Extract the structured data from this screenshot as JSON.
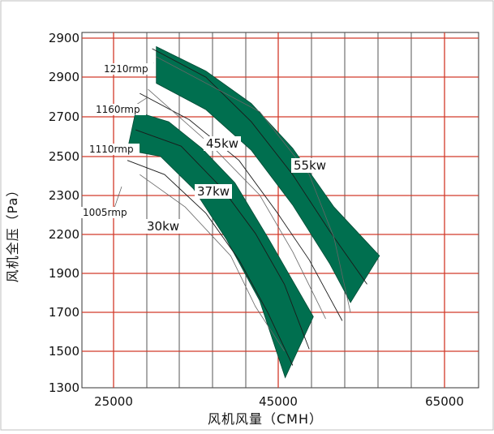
{
  "chart_data": {
    "type": "line",
    "xlabel": "风机风量（CMH）",
    "ylabel": "风机全压（Pa）",
    "x_ticks": [
      "25000",
      "45000",
      "65000"
    ],
    "y_ticks": [
      "2900",
      "2900",
      "2700",
      "2500",
      "2300",
      "2200",
      "1900",
      "1700",
      "1500",
      "1300"
    ],
    "grid": true,
    "speed_labels": [
      "1210rmp",
      "1160rmp",
      "1110rmp",
      "1005rmp"
    ],
    "bands": [
      {
        "power_label": "55kw",
        "color": "#006f4f",
        "top_edge": [
          [
            30000,
            2930
          ],
          [
            36000,
            2810
          ],
          [
            41500,
            2650
          ],
          [
            46500,
            2430
          ],
          [
            51500,
            2140
          ],
          [
            57000,
            1900
          ]
        ],
        "bottom_edge": [
          [
            30000,
            2750
          ],
          [
            36000,
            2620
          ],
          [
            41500,
            2420
          ],
          [
            46500,
            2150
          ],
          [
            51000,
            1860
          ],
          [
            53500,
            1670
          ]
        ]
      },
      {
        "power_label": "37kw",
        "color": "#006f4f",
        "top_edge": [
          [
            27500,
            2610
          ],
          [
            31500,
            2560
          ],
          [
            35500,
            2430
          ],
          [
            39500,
            2260
          ],
          [
            43500,
            1990
          ],
          [
            49000,
            1600
          ]
        ],
        "bottom_edge": [
          [
            26500,
            2420
          ],
          [
            30500,
            2390
          ],
          [
            34500,
            2230
          ],
          [
            38500,
            1980
          ],
          [
            42500,
            1680
          ],
          [
            45600,
            1300
          ]
        ]
      }
    ],
    "curves": [
      {
        "label": "1210rmp",
        "points": [
          [
            29500,
            2920
          ],
          [
            36000,
            2780
          ],
          [
            41500,
            2560
          ],
          [
            46500,
            2300
          ],
          [
            51000,
            2020
          ],
          [
            55500,
            1760
          ]
        ]
      },
      {
        "label": "1160rmp",
        "points": [
          [
            28000,
            2700
          ],
          [
            34000,
            2570
          ],
          [
            40000,
            2370
          ],
          [
            44500,
            2120
          ],
          [
            48500,
            1880
          ],
          [
            52500,
            1580
          ]
        ]
      },
      {
        "label": "1110rmp",
        "points": [
          [
            27500,
            2520
          ],
          [
            33000,
            2440
          ],
          [
            38000,
            2230
          ],
          [
            42000,
            2010
          ],
          [
            45500,
            1760
          ],
          [
            48500,
            1440
          ]
        ]
      },
      {
        "label": "1005rmp",
        "points": [
          [
            26500,
            2370
          ],
          [
            31000,
            2300
          ],
          [
            36000,
            2110
          ],
          [
            40000,
            1880
          ],
          [
            43500,
            1620
          ],
          [
            46500,
            1360
          ]
        ]
      }
    ],
    "aux_lines": [
      {
        "label": "55kw",
        "points": [
          [
            30000,
            2880
          ],
          [
            42500,
            2610
          ],
          [
            48500,
            2300
          ],
          [
            51500,
            1990
          ],
          [
            53500,
            1620
          ]
        ]
      },
      {
        "label": "45kw",
        "points": [
          [
            29000,
            2720
          ],
          [
            36500,
            2450
          ],
          [
            42500,
            2200
          ],
          [
            46500,
            1920
          ],
          [
            50500,
            1590
          ]
        ]
      },
      {
        "label": "30kw",
        "points": [
          [
            28000,
            2300
          ],
          [
            33500,
            2140
          ],
          [
            39000,
            1900
          ],
          [
            42000,
            1650
          ],
          [
            45500,
            1430
          ]
        ]
      }
    ],
    "power_labels": [
      "55kw",
      "45kw",
      "37kw",
      "30kw"
    ],
    "xlim": [
      21000,
      69000
    ],
    "ylim": [
      1250,
      3000
    ]
  }
}
